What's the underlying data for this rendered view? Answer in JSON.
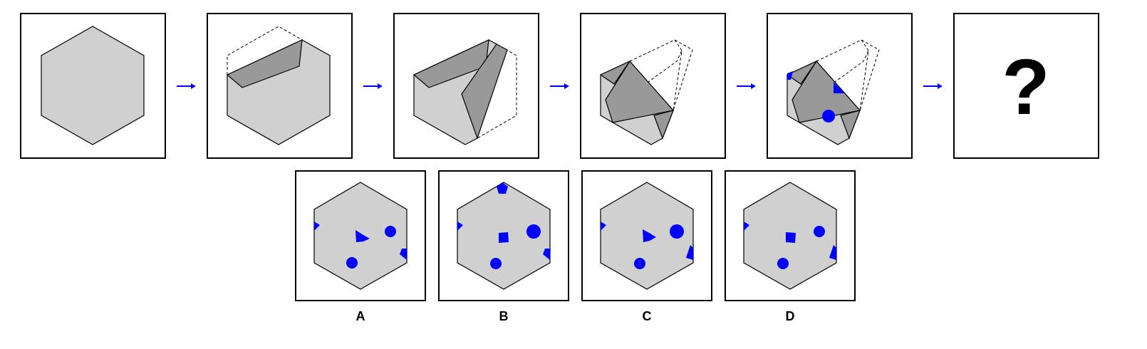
{
  "puzzle": {
    "sequence_panel_count": 6,
    "question_mark": "?",
    "options": [
      {
        "label": "A"
      },
      {
        "label": "B"
      },
      {
        "label": "C"
      },
      {
        "label": "D"
      }
    ]
  },
  "colors": {
    "paper_fill": "#d0d0d0",
    "fold_fill": "#999999",
    "outline": "#000000",
    "marker": "#0000ff",
    "arrow": "#0000ff",
    "background": "#ffffff"
  }
}
